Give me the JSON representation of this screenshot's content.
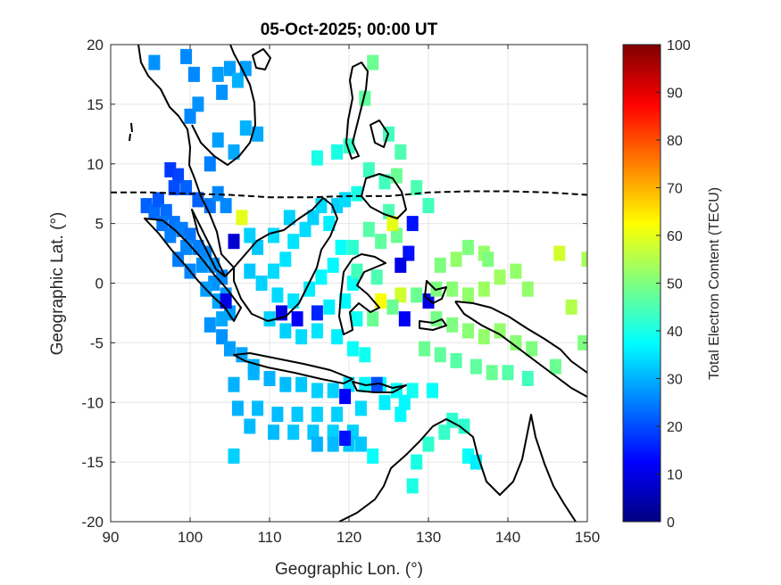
{
  "chart_data": {
    "type": "heatmap",
    "title": "05-Oct-2025; 00:00 UT",
    "xlabel": "Geographic Lon. (°)",
    "ylabel": "Geographic Lat. (°)",
    "xlim": [
      90,
      150
    ],
    "ylim": [
      -20,
      20
    ],
    "xticks": [
      90,
      100,
      110,
      120,
      130,
      140,
      150
    ],
    "yticks": [
      -20,
      -15,
      -10,
      -5,
      0,
      5,
      10,
      15,
      20
    ],
    "xtick_labels": [
      "90",
      "100",
      "110",
      "120",
      "130",
      "140",
      "150"
    ],
    "ytick_labels": [
      "-20",
      "-15",
      "-10",
      "-5",
      "0",
      "5",
      "10",
      "15",
      "20"
    ],
    "grid": true,
    "colorbar": {
      "label": "Total Electron Content (TECU)",
      "range": [
        0,
        100
      ],
      "ticks": [
        0,
        10,
        20,
        30,
        40,
        50,
        60,
        70,
        80,
        90,
        100
      ],
      "tick_labels": [
        "0",
        "10",
        "20",
        "30",
        "40",
        "50",
        "60",
        "70",
        "80",
        "90",
        "100"
      ],
      "colormap": "jet",
      "colors": [
        "#00007f",
        "#0000ff",
        "#007fff",
        "#00ffff",
        "#7fff7f",
        "#ffff00",
        "#ff7f00",
        "#ff0000",
        "#7f0000"
      ]
    },
    "magnetic_equator": {
      "style": "dashed",
      "points": [
        [
          90,
          7.6
        ],
        [
          95,
          7.6
        ],
        [
          100,
          7.5
        ],
        [
          105,
          7.4
        ],
        [
          110,
          7.2
        ],
        [
          115,
          7.2
        ],
        [
          120,
          7.3
        ],
        [
          125,
          7.3
        ],
        [
          130,
          7.6
        ],
        [
          135,
          7.7
        ],
        [
          140,
          7.7
        ],
        [
          145,
          7.6
        ],
        [
          150,
          7.4
        ]
      ]
    },
    "cells": [
      [
        99.5,
        19.0,
        26
      ],
      [
        100.5,
        17.5,
        26
      ],
      [
        103.5,
        17.5,
        28
      ],
      [
        104.0,
        16.0,
        27
      ],
      [
        105.0,
        18.0,
        28
      ],
      [
        106.0,
        17.0,
        30
      ],
      [
        107.0,
        18.0,
        28
      ],
      [
        95.5,
        18.5,
        27
      ],
      [
        100.0,
        14.0,
        26
      ],
      [
        101.0,
        15.0,
        27
      ],
      [
        103.5,
        12.0,
        28
      ],
      [
        105.5,
        11.0,
        29
      ],
      [
        107.0,
        13.0,
        30
      ],
      [
        108.5,
        12.5,
        29
      ],
      [
        102.5,
        10.0,
        25
      ],
      [
        97.5,
        9.5,
        18
      ],
      [
        98.5,
        9.0,
        19
      ],
      [
        98.0,
        8.0,
        20
      ],
      [
        99.5,
        8.0,
        22
      ],
      [
        101.0,
        7.0,
        22
      ],
      [
        102.5,
        6.5,
        24
      ],
      [
        103.5,
        7.5,
        26
      ],
      [
        104.5,
        6.5,
        26
      ],
      [
        94.5,
        6.5,
        22
      ],
      [
        95.5,
        6.0,
        23
      ],
      [
        96.0,
        7.0,
        21
      ],
      [
        97.0,
        6.0,
        23
      ],
      [
        96.5,
        5.0,
        24
      ],
      [
        98.0,
        5.0,
        24
      ],
      [
        99.0,
        4.5,
        25
      ],
      [
        97.5,
        4.0,
        25
      ],
      [
        100.0,
        4.0,
        24
      ],
      [
        101.0,
        3.0,
        25
      ],
      [
        99.5,
        3.0,
        26
      ],
      [
        102.0,
        2.5,
        26
      ],
      [
        103.0,
        1.5,
        27
      ],
      [
        101.5,
        1.5,
        27
      ],
      [
        104.0,
        0.5,
        26
      ],
      [
        103.0,
        0.0,
        27
      ],
      [
        100.0,
        1.0,
        26
      ],
      [
        98.5,
        2.0,
        25
      ],
      [
        102.0,
        -0.5,
        28
      ],
      [
        104.5,
        -1.0,
        28
      ],
      [
        103.5,
        -1.5,
        29
      ],
      [
        105.0,
        -2.5,
        28
      ],
      [
        104.0,
        -3.0,
        29
      ],
      [
        102.5,
        -3.5,
        27
      ],
      [
        104.0,
        -4.5,
        27
      ],
      [
        105.0,
        -5.5,
        28
      ],
      [
        106.5,
        -6.0,
        29
      ],
      [
        108.0,
        -7.0,
        30
      ],
      [
        104.5,
        -1.5,
        10
      ],
      [
        105.5,
        3.5,
        8
      ],
      [
        106.5,
        5.5,
        60
      ],
      [
        107.5,
        4.0,
        33
      ],
      [
        108.5,
        3.0,
        32
      ],
      [
        107.5,
        1.0,
        32
      ],
      [
        109.0,
        0.0,
        33
      ],
      [
        110.5,
        1.0,
        34
      ],
      [
        112.0,
        2.0,
        35
      ],
      [
        113.0,
        3.5,
        35
      ],
      [
        114.5,
        4.5,
        34
      ],
      [
        115.5,
        5.5,
        33
      ],
      [
        116.5,
        6.5,
        34
      ],
      [
        117.5,
        5.0,
        36
      ],
      [
        118.5,
        6.5,
        33
      ],
      [
        119.5,
        7.0,
        34
      ],
      [
        110.5,
        4.0,
        34
      ],
      [
        112.5,
        5.5,
        33
      ],
      [
        111.0,
        -1.0,
        34
      ],
      [
        113.0,
        -1.5,
        35
      ],
      [
        115.0,
        -0.5,
        36
      ],
      [
        116.5,
        0.5,
        37
      ],
      [
        118.0,
        1.5,
        37
      ],
      [
        119.0,
        3.0,
        38
      ],
      [
        117.5,
        -2.0,
        36
      ],
      [
        119.5,
        -1.5,
        37
      ],
      [
        120.5,
        0.0,
        38
      ],
      [
        121.0,
        -3.0,
        39
      ],
      [
        110.0,
        -3.0,
        33
      ],
      [
        112.0,
        -4.0,
        33
      ],
      [
        114.0,
        -4.5,
        34
      ],
      [
        116.0,
        -4.0,
        35
      ],
      [
        118.5,
        -4.5,
        36
      ],
      [
        120.5,
        -5.5,
        38
      ],
      [
        122.0,
        -6.0,
        39
      ],
      [
        113.5,
        -3.0,
        12
      ],
      [
        111.5,
        -2.5,
        10
      ],
      [
        116.0,
        -2.5,
        16
      ],
      [
        108.0,
        -7.5,
        30
      ],
      [
        110.0,
        -8.0,
        30
      ],
      [
        112.0,
        -8.5,
        31
      ],
      [
        114.0,
        -8.5,
        32
      ],
      [
        116.0,
        -9.0,
        33
      ],
      [
        118.0,
        -9.0,
        33
      ],
      [
        120.0,
        -8.5,
        35
      ],
      [
        122.0,
        -8.5,
        37
      ],
      [
        124.0,
        -8.5,
        38
      ],
      [
        126.0,
        -9.0,
        38
      ],
      [
        128.0,
        -9.0,
        39
      ],
      [
        119.5,
        -9.5,
        12
      ],
      [
        123.5,
        -8.5,
        20
      ],
      [
        105.5,
        -8.5,
        30
      ],
      [
        106.0,
        -10.5,
        30
      ],
      [
        108.5,
        -10.5,
        31
      ],
      [
        111.0,
        -11.0,
        31
      ],
      [
        113.5,
        -11.0,
        32
      ],
      [
        116.0,
        -11.0,
        33
      ],
      [
        118.5,
        -11.0,
        33
      ],
      [
        121.5,
        -10.5,
        34
      ],
      [
        124.5,
        -10.0,
        36
      ],
      [
        127.0,
        -10.0,
        37
      ],
      [
        107.5,
        -12.0,
        31
      ],
      [
        110.5,
        -12.5,
        31
      ],
      [
        113.0,
        -12.5,
        32
      ],
      [
        115.5,
        -12.5,
        32
      ],
      [
        118.0,
        -12.5,
        33
      ],
      [
        120.5,
        -12.5,
        33
      ],
      [
        116.0,
        -13.5,
        30
      ],
      [
        118.0,
        -13.5,
        31
      ],
      [
        120.0,
        -13.5,
        32
      ],
      [
        121.5,
        -13.5,
        32
      ],
      [
        119.5,
        -13.0,
        14
      ],
      [
        105.5,
        -14.5,
        33
      ],
      [
        123.0,
        -14.5,
        38
      ],
      [
        128.5,
        -15.0,
        40
      ],
      [
        130.0,
        -13.5,
        42
      ],
      [
        132.0,
        -12.5,
        43
      ],
      [
        134.5,
        -12.0,
        42
      ],
      [
        135.0,
        -14.5,
        38
      ],
      [
        136.0,
        -15.0,
        36
      ],
      [
        128.0,
        -17.0,
        40
      ],
      [
        130.5,
        -9.0,
        38
      ],
      [
        133.0,
        -11.5,
        42
      ],
      [
        126.5,
        -11.0,
        37
      ],
      [
        123.0,
        18.5,
        48
      ],
      [
        122.0,
        15.5,
        47
      ],
      [
        125.0,
        12.5,
        44
      ],
      [
        126.5,
        11.0,
        45
      ],
      [
        120.0,
        11.5,
        43
      ],
      [
        118.5,
        11.0,
        40
      ],
      [
        116.0,
        10.5,
        40
      ],
      [
        124.5,
        8.5,
        44
      ],
      [
        126.0,
        9.0,
        48
      ],
      [
        122.5,
        9.5,
        44
      ],
      [
        128.5,
        8.0,
        45
      ],
      [
        130.0,
        6.5,
        44
      ],
      [
        121.0,
        7.5,
        40
      ],
      [
        125.0,
        6.0,
        45
      ],
      [
        122.5,
        4.5,
        46
      ],
      [
        124.0,
        3.5,
        47
      ],
      [
        126.0,
        4.0,
        48
      ],
      [
        127.5,
        2.5,
        14
      ],
      [
        126.5,
        1.5,
        10
      ],
      [
        125.5,
        5.0,
        60
      ],
      [
        128.0,
        5.0,
        14
      ],
      [
        124.0,
        -1.5,
        62
      ],
      [
        126.5,
        -1.0,
        58
      ],
      [
        128.5,
        -1.0,
        48
      ],
      [
        130.0,
        -1.5,
        10
      ],
      [
        125.5,
        -2.0,
        48
      ],
      [
        127.0,
        -3.0,
        12
      ],
      [
        123.0,
        -3.0,
        48
      ],
      [
        120.5,
        3.0,
        42
      ],
      [
        121.0,
        1.0,
        44
      ],
      [
        123.5,
        0.5,
        45
      ],
      [
        131.5,
        1.5,
        50
      ],
      [
        133.5,
        2.0,
        52
      ],
      [
        135.0,
        3.0,
        50
      ],
      [
        137.0,
        2.5,
        52
      ],
      [
        131.0,
        -0.5,
        50
      ],
      [
        133.0,
        -0.5,
        51
      ],
      [
        135.0,
        -1.0,
        52
      ],
      [
        137.0,
        -0.5,
        53
      ],
      [
        139.0,
        0.5,
        53
      ],
      [
        141.0,
        1.0,
        52
      ],
      [
        142.5,
        -0.5,
        52
      ],
      [
        131.0,
        -3.0,
        49
      ],
      [
        133.0,
        -3.5,
        50
      ],
      [
        135.0,
        -4.0,
        51
      ],
      [
        137.0,
        -4.5,
        52
      ],
      [
        139.0,
        -4.0,
        52
      ],
      [
        141.0,
        -5.0,
        51
      ],
      [
        129.5,
        -5.5,
        48
      ],
      [
        131.5,
        -6.0,
        47
      ],
      [
        133.5,
        -6.5,
        46
      ],
      [
        136.0,
        -7.0,
        47
      ],
      [
        138.0,
        -7.5,
        48
      ],
      [
        140.0,
        -7.5,
        46
      ],
      [
        142.5,
        -8.0,
        44
      ],
      [
        137.5,
        2.0,
        50
      ],
      [
        146.5,
        2.5,
        58
      ],
      [
        150.0,
        2.0,
        54
      ],
      [
        148.0,
        -2.0,
        55
      ],
      [
        149.5,
        -5.0,
        50
      ],
      [
        146.0,
        -7.0,
        48
      ],
      [
        143.0,
        -5.5,
        50
      ]
    ]
  }
}
